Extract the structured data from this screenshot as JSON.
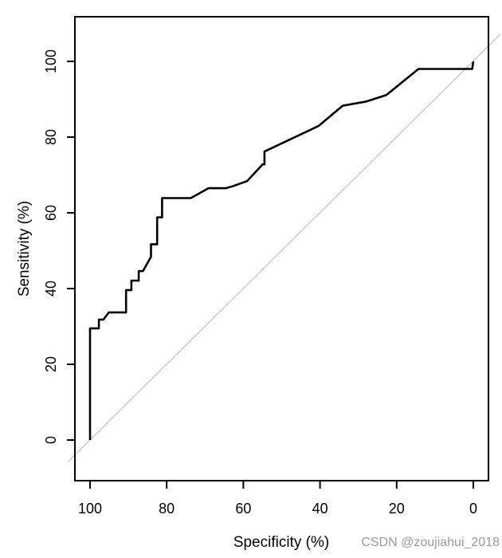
{
  "watermark": {
    "text": "CSDN @zoujiahui_2018",
    "color": "#9b9b9b"
  },
  "chart_data": {
    "type": "line",
    "title": "",
    "xlabel": "Specificity (%)",
    "ylabel": "Sensitivity (%)",
    "x_reversed": true,
    "xlim": [
      104,
      -4
    ],
    "ylim": [
      -10,
      112
    ],
    "x_ticks": [
      100,
      80,
      60,
      40,
      20,
      0
    ],
    "y_ticks": [
      0,
      20,
      40,
      60,
      80,
      100
    ],
    "grid": false,
    "legend": false,
    "series": [
      {
        "name": "roc-curve",
        "color": "#000000",
        "width": 2.6,
        "points": [
          [
            100,
            0
          ],
          [
            100,
            29.5
          ],
          [
            97.7,
            29.5
          ],
          [
            97.7,
            31.8
          ],
          [
            96.5,
            31.8
          ],
          [
            95.1,
            33.7
          ],
          [
            90.6,
            33.7
          ],
          [
            90.6,
            39.6
          ],
          [
            89.2,
            39.6
          ],
          [
            89.2,
            42.1
          ],
          [
            87.3,
            42.1
          ],
          [
            87.3,
            44.6
          ],
          [
            86.2,
            44.6
          ],
          [
            84.1,
            48.4
          ],
          [
            84.1,
            51.7
          ],
          [
            82.5,
            51.7
          ],
          [
            82.5,
            58.8
          ],
          [
            81.2,
            58.8
          ],
          [
            81.2,
            63.9
          ],
          [
            73.7,
            63.9
          ],
          [
            69.1,
            66.5
          ],
          [
            64.6,
            66.5
          ],
          [
            62.9,
            67.0
          ],
          [
            59.0,
            68.4
          ],
          [
            55.0,
            72.8
          ],
          [
            54.5,
            72.8
          ],
          [
            54.5,
            76.2
          ],
          [
            40.3,
            83.0
          ],
          [
            34.1,
            88.3
          ],
          [
            27.9,
            89.4
          ],
          [
            22.7,
            91.1
          ],
          [
            14.3,
            98.0
          ],
          [
            0.3,
            98.0
          ],
          [
            0,
            100
          ]
        ]
      },
      {
        "name": "chance-line",
        "color": "#c3c3c3",
        "width": 1.2,
        "points": [
          [
            105.8,
            -5.8
          ],
          [
            -7.1,
            107.2
          ]
        ]
      }
    ]
  }
}
